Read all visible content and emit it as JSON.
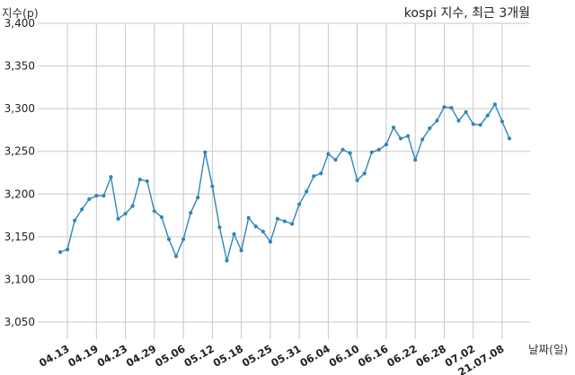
{
  "chart_data": {
    "type": "line",
    "title": "kospi 지수, 최근 3개월",
    "ylabel": "지수(p)",
    "xlabel": "날짜(일)",
    "ylim": [
      3030,
      3400
    ],
    "yticks": [
      3050,
      3100,
      3150,
      3200,
      3250,
      3300,
      3350,
      3400
    ],
    "ytick_labels": [
      "3,050",
      "3,100",
      "3,150",
      "3,200",
      "3,250",
      "3,300",
      "3,350",
      "3,400"
    ],
    "xtick_labels": [
      "04.13",
      "04.19",
      "04.23",
      "04.29",
      "05.06",
      "05.12",
      "05.18",
      "05.25",
      "05.31",
      "06.04",
      "06.10",
      "06.16",
      "06.22",
      "06.28",
      "07.02",
      "21.07.08"
    ],
    "grid": true,
    "color": "#2e86b8",
    "series": [
      {
        "values": [
          3132,
          3135,
          3169,
          3182,
          3194,
          3198,
          3198,
          3220,
          3171,
          3177,
          3186,
          3217,
          3215,
          3180,
          3173,
          3147,
          3127,
          3147,
          3178,
          3196,
          3249,
          3209,
          3161,
          3122,
          3153,
          3134,
          3172,
          3162,
          3156,
          3144,
          3171,
          3168,
          3165,
          3188,
          3203,
          3221,
          3224,
          3247,
          3240,
          3252,
          3248,
          3216,
          3224,
          3249,
          3252,
          3258,
          3278,
          3265,
          3268,
          3240,
          3264,
          3277,
          3286,
          3302,
          3301,
          3286,
          3296,
          3282,
          3281,
          3292,
          3305,
          3285,
          3265
        ]
      }
    ]
  }
}
